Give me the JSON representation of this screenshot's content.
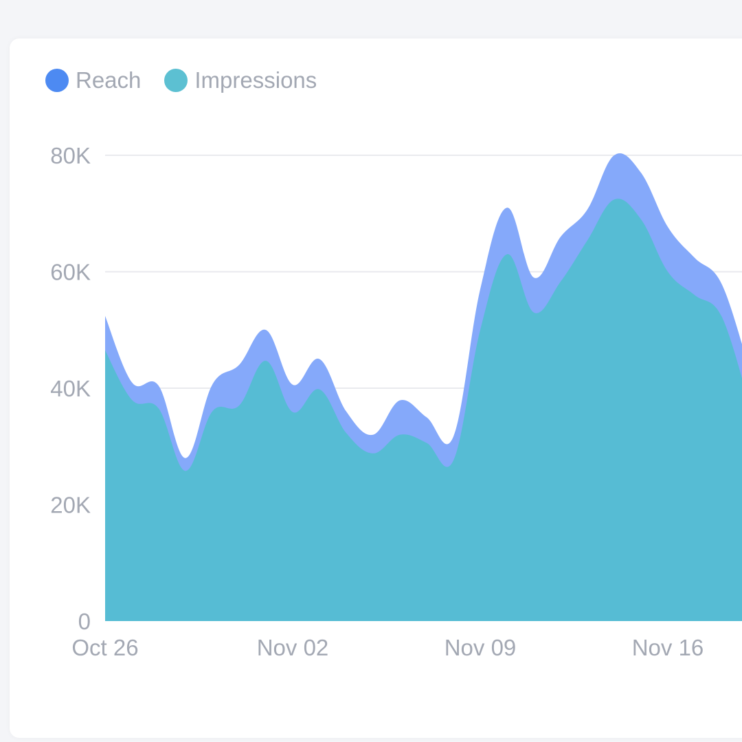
{
  "colors": {
    "reach_dot": "#4d8af2",
    "reach_area": "#85a9fa",
    "impressions_dot": "#5cc0d2",
    "impressions_area": "#56bcd4",
    "grid": "#e9eaee",
    "tick_text": "#a3a8b3"
  },
  "chart_data": {
    "type": "area",
    "title": "",
    "xlabel": "",
    "ylabel": "",
    "legend_position": "top-left",
    "grid": true,
    "ylim": [
      0,
      80000
    ],
    "y_ticks": [
      {
        "value": 0,
        "label": "0"
      },
      {
        "value": 20000,
        "label": "20K"
      },
      {
        "value": 40000,
        "label": "40K"
      },
      {
        "value": 60000,
        "label": "60K"
      },
      {
        "value": 80000,
        "label": "80K"
      }
    ],
    "x_ticks": [
      {
        "index": 0,
        "label": "Oct 26"
      },
      {
        "index": 7,
        "label": "Nov 02"
      },
      {
        "index": 14,
        "label": "Nov 09"
      },
      {
        "index": 21,
        "label": "Nov 16"
      }
    ],
    "x": [
      "Oct 26",
      "Oct 27",
      "Oct 28",
      "Oct 29",
      "Oct 30",
      "Oct 31",
      "Nov 01",
      "Nov 02",
      "Nov 03",
      "Nov 04",
      "Nov 05",
      "Nov 06",
      "Nov 07",
      "Nov 08",
      "Nov 09",
      "Nov 10",
      "Nov 11",
      "Nov 12",
      "Nov 13",
      "Nov 14",
      "Nov 15",
      "Nov 16",
      "Nov 17",
      "Nov 18",
      "Nov 19"
    ],
    "series": [
      {
        "name": "Reach",
        "values": [
          52400,
          41000,
          40400,
          28000,
          40600,
          44000,
          50000,
          40600,
          45000,
          36000,
          32000,
          37900,
          35000,
          31700,
          57000,
          71000,
          59000,
          66000,
          70700,
          80000,
          77000,
          67700,
          62400,
          58000,
          44000
        ]
      },
      {
        "name": "Impressions",
        "values": [
          46500,
          38000,
          36500,
          25800,
          36000,
          37000,
          44700,
          35900,
          39800,
          32300,
          28800,
          32000,
          30600,
          27600,
          50000,
          63000,
          53000,
          58300,
          65400,
          72400,
          69000,
          60000,
          56000,
          52400,
          38000
        ]
      }
    ]
  }
}
